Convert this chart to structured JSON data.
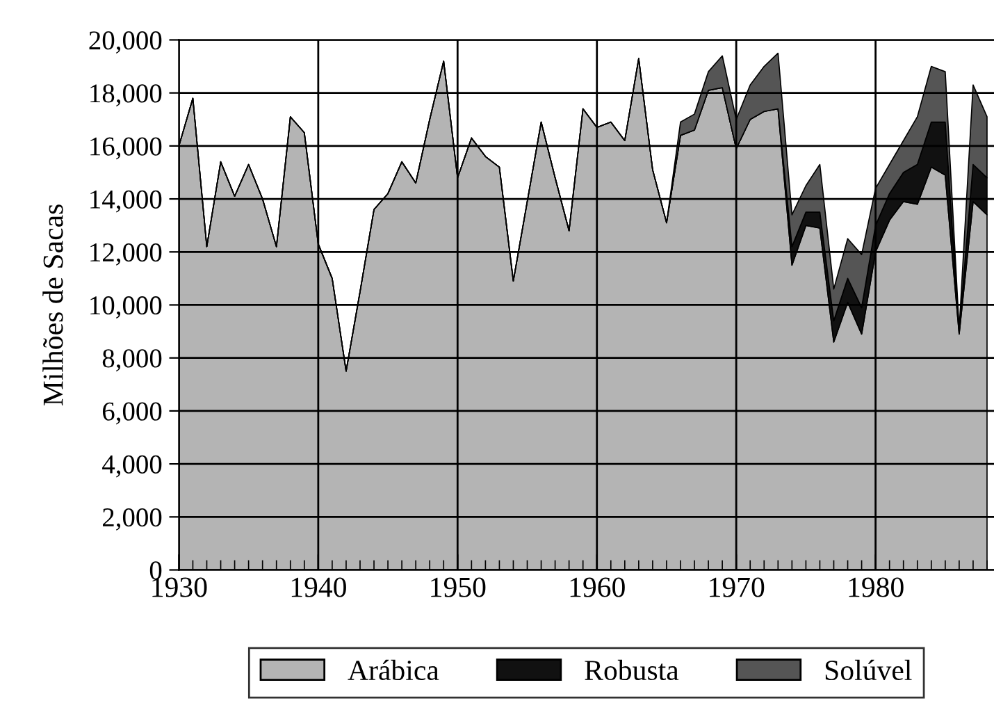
{
  "chart_data": {
    "type": "area",
    "stacked": true,
    "ylabel": "Milhões de Sacas",
    "x": [
      1930,
      1931,
      1932,
      1933,
      1934,
      1935,
      1936,
      1937,
      1938,
      1939,
      1940,
      1941,
      1942,
      1943,
      1944,
      1945,
      1946,
      1947,
      1948,
      1949,
      1950,
      1951,
      1952,
      1953,
      1954,
      1955,
      1956,
      1957,
      1958,
      1959,
      1960,
      1961,
      1962,
      1963,
      1964,
      1965,
      1966,
      1967,
      1968,
      1969,
      1970,
      1971,
      1972,
      1973,
      1974,
      1975,
      1976,
      1977,
      1978,
      1979,
      1980,
      1981,
      1982,
      1983,
      1984,
      1985,
      1986,
      1987,
      1988
    ],
    "series": [
      {
        "name": "Arábica",
        "color": "#b4b4b4",
        "values": [
          16000,
          17800,
          12200,
          15400,
          14100,
          15300,
          14000,
          12200,
          17100,
          16500,
          12300,
          11000,
          7500,
          10500,
          13600,
          14200,
          15400,
          14600,
          17000,
          19200,
          14800,
          16300,
          15600,
          15200,
          10900,
          13900,
          16900,
          14800,
          12800,
          17400,
          16700,
          16900,
          16200,
          19300,
          15100,
          13100,
          16400,
          16600,
          18100,
          18200,
          15900,
          17000,
          17300,
          17400,
          11500,
          13000,
          12900,
          8600,
          10100,
          8900,
          12000,
          13200,
          13900,
          13800,
          15200,
          14900,
          8900,
          13900,
          13400
        ]
      },
      {
        "name": "Robusta",
        "color": "#111111",
        "values": [
          0,
          0,
          0,
          0,
          0,
          0,
          0,
          0,
          0,
          0,
          0,
          0,
          0,
          0,
          0,
          0,
          0,
          0,
          0,
          0,
          0,
          0,
          0,
          0,
          0,
          0,
          0,
          0,
          0,
          0,
          0,
          0,
          0,
          0,
          0,
          0,
          0,
          0,
          0,
          0,
          0,
          0,
          0,
          0,
          700,
          500,
          600,
          800,
          900,
          1000,
          1000,
          1000,
          1100,
          1500,
          1700,
          2000,
          100,
          1400,
          1400
        ]
      },
      {
        "name": "Solúvel",
        "color": "#555555",
        "values": [
          0,
          0,
          0,
          0,
          0,
          0,
          0,
          0,
          0,
          0,
          0,
          0,
          0,
          0,
          0,
          0,
          0,
          0,
          0,
          0,
          0,
          0,
          0,
          0,
          0,
          0,
          0,
          0,
          0,
          0,
          0,
          0,
          0,
          0,
          0,
          0,
          500,
          600,
          700,
          1200,
          1100,
          1300,
          1700,
          2100,
          1200,
          1000,
          1800,
          1200,
          1500,
          2000,
          1400,
          1100,
          1200,
          1800,
          2100,
          1900,
          100,
          3000,
          2300
        ]
      }
    ],
    "xlim": [
      1930,
      1988.5
    ],
    "xticks": [
      1930,
      1940,
      1950,
      1960,
      1970,
      1980
    ],
    "ylim": [
      0,
      20000
    ],
    "yticks": [
      0,
      {
        "value": 2000,
        "label": "2,000"
      },
      {
        "value": 4000,
        "label": "4,000"
      },
      {
        "value": 6000,
        "label": "6,000"
      },
      {
        "value": 8000,
        "label": "8,000"
      },
      {
        "value": 10000,
        "label": "10,000"
      },
      {
        "value": 12000,
        "label": "12,000"
      },
      {
        "value": 14000,
        "label": "14,000"
      },
      {
        "value": 16000,
        "label": "16,000"
      },
      {
        "value": 18000,
        "label": "18,000"
      },
      {
        "value": 20000,
        "label": "20,000"
      }
    ],
    "grid": true,
    "legend": "bottom"
  }
}
